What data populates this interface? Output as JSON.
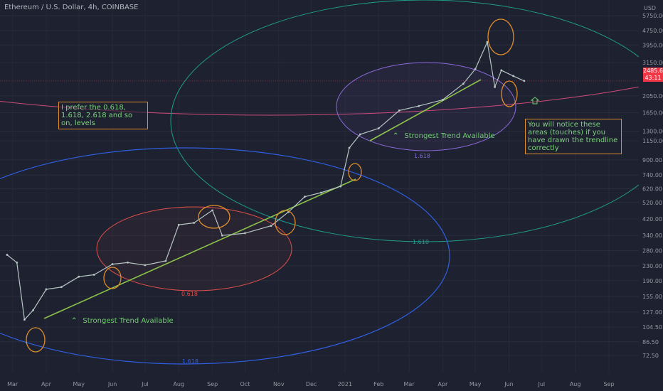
{
  "header": {
    "title": "Ethereum / U.S. Dollar, 4h, COINBASE"
  },
  "price_axis": {
    "unit": "USD",
    "ticks": [
      "5750.00",
      "4750.00",
      "3950.00",
      "3150.00",
      "2050.00",
      "1650.00",
      "1300.00",
      "1150.00",
      "900.00",
      "740.00",
      "620.00",
      "520.00",
      "420.00",
      "340.00",
      "280.00",
      "230.00",
      "190.00",
      "155.00",
      "127.00",
      "104.50",
      "86.50",
      "72.50"
    ],
    "last_price": "2485.61",
    "countdown": "43:11"
  },
  "time_axis": {
    "ticks": [
      "Mar",
      "Apr",
      "May",
      "Jun",
      "Jul",
      "Aug",
      "Sep",
      "Oct",
      "Nov",
      "Dec",
      "2021",
      "Feb",
      "Mar",
      "Apr",
      "May",
      "Jun",
      "Jul",
      "Aug",
      "Sep"
    ]
  },
  "annotations": {
    "note_left": "I prefer the 0.618, 1.618, 2.618 and so on, levels",
    "note_right": "You will notice these areas (touches) if you have drawn the trendline correctly",
    "trend_label_lower": "Strongest Trend Available",
    "trend_label_upper": "Strongest Trend Available",
    "fib_red": "0.618",
    "fib_blue": "1.618",
    "fib_purple": "1.618",
    "fib_teal": "1.618"
  },
  "colors": {
    "background": "#1e2130",
    "candle_up": "#b7c7c4",
    "trendline": "#8bc34a",
    "ellipse_red": "#e0504a",
    "ellipse_blue": "#2f5fe0",
    "ellipse_purple": "#8a6ad8",
    "ellipse_teal": "#1f9e8a",
    "ellipse_pink": "#d04a78",
    "touch_circle": "#e08e2a",
    "price_tag": "#f23645"
  },
  "chart_data": {
    "type": "line",
    "title": "Ethereum / U.S. Dollar, 4h, COINBASE",
    "xlabel": "",
    "ylabel": "USD",
    "y_scale": "log",
    "ylim": [
      65,
      6200
    ],
    "x": [
      "2020-02-25",
      "2020-03-05",
      "2020-03-12",
      "2020-03-20",
      "2020-04-01",
      "2020-04-15",
      "2020-05-01",
      "2020-05-15",
      "2020-06-01",
      "2020-06-15",
      "2020-07-01",
      "2020-07-20",
      "2020-08-01",
      "2020-08-15",
      "2020-09-01",
      "2020-09-10",
      "2020-10-01",
      "2020-10-25",
      "2020-11-10",
      "2020-11-25",
      "2020-12-10",
      "2020-12-28",
      "2021-01-05",
      "2021-01-15",
      "2021-02-01",
      "2021-02-20",
      "2021-03-10",
      "2021-04-01",
      "2021-04-20",
      "2021-05-01",
      "2021-05-12",
      "2021-05-19",
      "2021-05-25",
      "2021-06-05",
      "2021-06-15"
    ],
    "series": [
      {
        "values": [
          265,
          240,
          115,
          130,
          170,
          175,
          200,
          205,
          235,
          240,
          232,
          245,
          390,
          400,
          470,
          340,
          350,
          385,
          460,
          560,
          590,
          640,
          1050,
          1250,
          1350,
          1700,
          1800,
          1950,
          2400,
          2900,
          4100,
          2300,
          2850,
          2650,
          2485.61
        ]
      }
    ]
  }
}
